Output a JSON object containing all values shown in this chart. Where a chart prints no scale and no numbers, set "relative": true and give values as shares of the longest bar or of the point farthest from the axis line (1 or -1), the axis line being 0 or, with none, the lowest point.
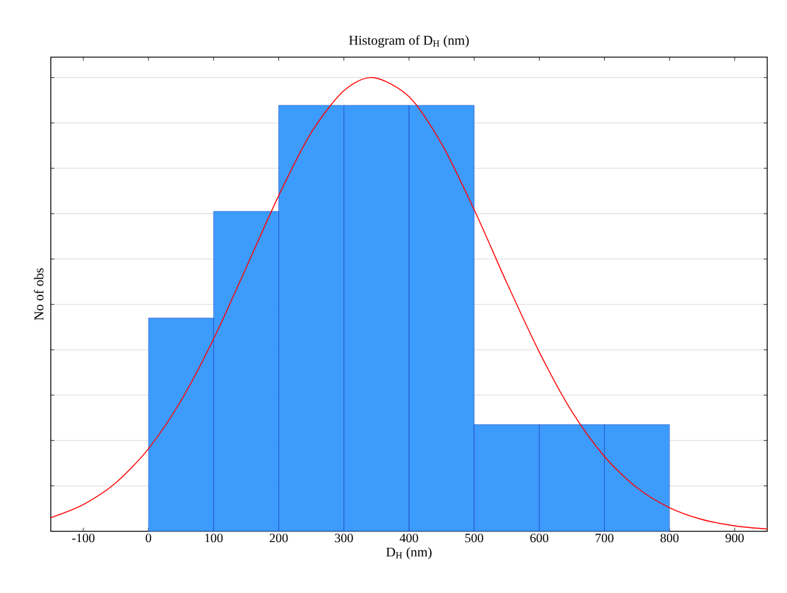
{
  "chart_data": {
    "type": "histogram",
    "title": "Histogram of D$_{H}$ (nm)",
    "xlabel": "D$_{H}$ (nm)",
    "ylabel": "No of obs",
    "relative": true,
    "xlim": [
      -150,
      950
    ],
    "xticks": [
      -100,
      0,
      100,
      200,
      300,
      400,
      500,
      600,
      700,
      800,
      900
    ],
    "grid": "y",
    "series": [
      {
        "color": "#3d9bfb",
        "bins": [
          0,
          100,
          200,
          300,
          400,
          500,
          600,
          700,
          800
        ],
        "values": [
          0.47,
          0.705,
          0.939,
          0.939,
          0.939,
          0.235,
          0.235,
          0.235
        ]
      },
      {
        "type": "line",
        "color": "#ff0000",
        "marker": "none",
        "line_style": "solid",
        "x": [
          -150,
          -100,
          -50,
          0,
          50,
          100,
          150,
          200,
          250,
          300,
          345,
          400,
          450,
          500,
          550,
          600,
          650,
          700,
          750,
          800,
          850,
          900,
          950
        ],
        "values": [
          0.03,
          0.059,
          0.107,
          0.182,
          0.288,
          0.424,
          0.581,
          0.74,
          0.879,
          0.971,
          1,
          0.958,
          0.854,
          0.709,
          0.548,
          0.395,
          0.264,
          0.165,
          0.096,
          0.052,
          0.026,
          0.012,
          0.005
        ]
      }
    ]
  }
}
